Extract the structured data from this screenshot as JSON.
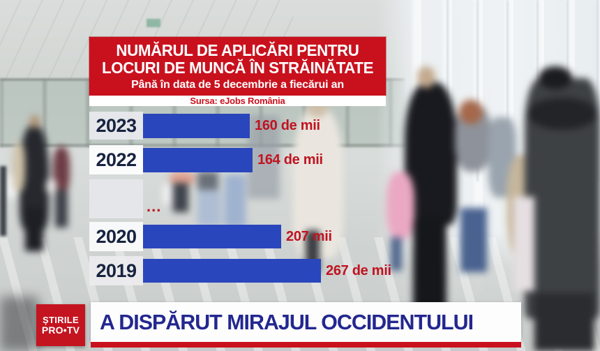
{
  "brand": {
    "logo_line1": "ȘTIRILE",
    "logo_line2": "PRO•TV"
  },
  "header": {
    "title_line1": "NUMĂRUL DE APLICĂRI PENTRU",
    "title_line2": "LOCURI DE MUNCĂ ÎN STRĂINĂTATE",
    "subtitle": "Până în data de 5 decembrie a fiecărui an",
    "source": "Sursa: eJobs România"
  },
  "chart_data": {
    "type": "bar",
    "orientation": "horizontal",
    "title": "Numărul de aplicări pentru locuri de muncă în străinătate",
    "subtitle": "Până în data de 5 decembrie a fiecărui an",
    "source": "Sursa: eJobs România",
    "categories": [
      "2023",
      "2022",
      "...",
      "2020",
      "2019"
    ],
    "values": [
      160,
      164,
      null,
      207,
      267
    ],
    "value_labels": [
      "160 de mii",
      "164 de mii",
      "",
      "207 mii",
      "267 de mii"
    ],
    "gap_label": "...",
    "unit": "thousands of applications",
    "xlim": [
      0,
      280
    ],
    "grid": false,
    "legend": false,
    "bar_color": "#2a46bc",
    "category_color": "#17233f",
    "value_color": "#c01320"
  },
  "banner": {
    "headline": "A DISPĂRUT MIRAJUL OCCIDENTULUI"
  },
  "colors": {
    "accent_red": "#c9111e",
    "bar_blue": "#2a46bc",
    "headline_blue": "#23278f",
    "year_navy": "#17233f",
    "value_red": "#c01320",
    "logo_red": "#c41420"
  }
}
